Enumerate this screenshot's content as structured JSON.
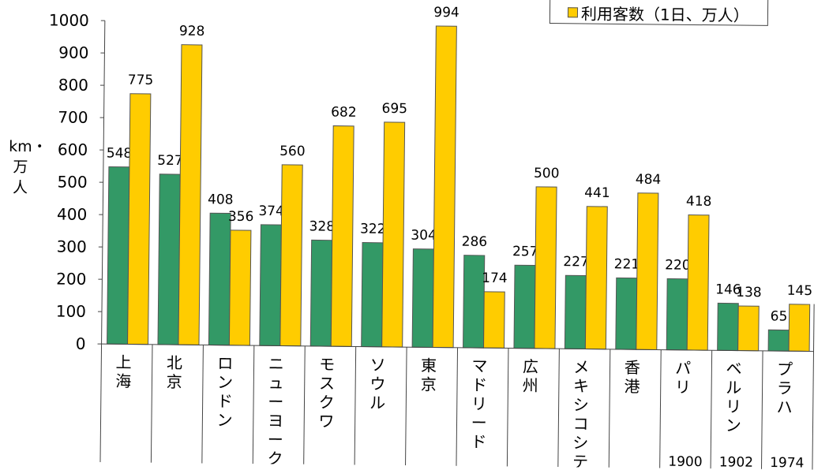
{
  "chart_data": {
    "type": "bar",
    "ylabel": "km・万人",
    "ylim": [
      0,
      1000
    ],
    "yticks": [
      0,
      100,
      200,
      300,
      400,
      500,
      600,
      700,
      800,
      900,
      1000
    ],
    "categories": [
      "上海",
      "北京",
      "ロンドン",
      "ニューヨーク",
      "モスクワ",
      "ソウル",
      "東京",
      "マドリード",
      "広州",
      "メキシコシティ",
      "香港",
      "パリ",
      "ベルリン",
      "プラハ"
    ],
    "opened": [
      "",
      "",
      "",
      "",
      "",
      "",
      "",
      "",
      "",
      "",
      "",
      "1900",
      "1902",
      "1974"
    ],
    "series": [
      {
        "name": "",
        "color": "#339966",
        "values": [
          548,
          527,
          408,
          374,
          328,
          322,
          304,
          286,
          257,
          227,
          221,
          220,
          146,
          65
        ]
      },
      {
        "name": "利用客数（1日、万人）",
        "color": "#FFCC00",
        "values": [
          775,
          928,
          356,
          560,
          682,
          695,
          994,
          174,
          500,
          441,
          484,
          418,
          138,
          145
        ]
      }
    ],
    "legend": "top-right"
  }
}
